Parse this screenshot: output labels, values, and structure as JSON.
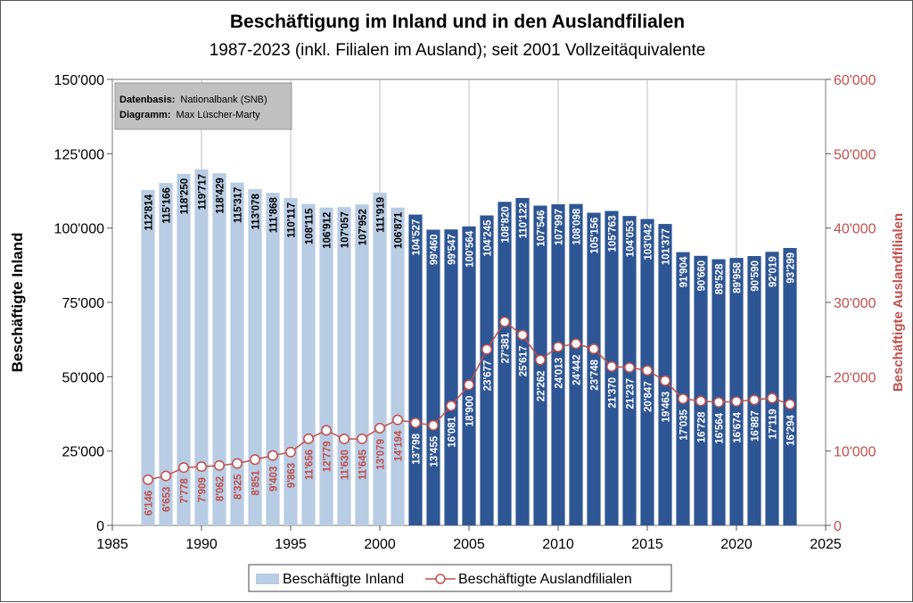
{
  "chart_data": {
    "type": "bar+line",
    "title": "Beschäftigung im Inland und in den Auslandfilialen",
    "subtitle": "1987-2023 (inkl. Filialen im Ausland); seit 2001 Vollzeitäquivalente",
    "ylabel_left": "Beschäftigte Inland",
    "ylabel_right": "Beschäftigte Auslandfilialen",
    "xlim": [
      1985,
      2025
    ],
    "x_ticks": [
      "1985",
      "1990",
      "1995",
      "2000",
      "2005",
      "2010",
      "2015",
      "2020",
      "2025"
    ],
    "ylim_left": [
      0,
      150000
    ],
    "y_ticks_left": [
      "0",
      "25'000",
      "50'000",
      "75'000",
      "100'000",
      "125'000",
      "150'000"
    ],
    "ylim_right": [
      0,
      60000
    ],
    "y_ticks_right": [
      "0",
      "10'000",
      "20'000",
      "30'000",
      "40'000",
      "50'000",
      "60'000"
    ],
    "grid": "vertical",
    "legend_placement": "bottom",
    "source_box": {
      "line1_label": "Datenbasis:",
      "line1_value": "Nationalbank (SNB)",
      "line2_label": "Diagramm:",
      "line2_value": "Max Lüscher-Marty"
    },
    "colors": {
      "bar_light": "#b8cce4",
      "bar_dark": "#2e5694",
      "line": "#c0504d",
      "axis_right": "#c0504d"
    },
    "x": [
      1987,
      1988,
      1989,
      1990,
      1991,
      1992,
      1993,
      1994,
      1995,
      1996,
      1997,
      1998,
      1999,
      2000,
      2001,
      2002,
      2003,
      2004,
      2005,
      2006,
      2007,
      2008,
      2009,
      2010,
      2011,
      2012,
      2013,
      2014,
      2015,
      2016,
      2017,
      2018,
      2019,
      2020,
      2021,
      2022,
      2023
    ],
    "series": [
      {
        "name": "Beschäftigte Inland",
        "values": [
          112814,
          115166,
          118250,
          119717,
          118429,
          115317,
          113078,
          111868,
          110117,
          108115,
          106912,
          107057,
          107952,
          111919,
          106871,
          104527,
          99460,
          99547,
          100564,
          104245,
          108820,
          110122,
          107546,
          107997,
          108098,
          105156,
          105763,
          104053,
          103042,
          101377,
          91904,
          90660,
          89528,
          89958,
          90590,
          92019,
          93299
        ],
        "labels": [
          "112'814",
          "115'166",
          "118'250",
          "119'717",
          "118'429",
          "115'317",
          "113'078",
          "111'868",
          "110'117",
          "108'115",
          "106'912",
          "107'057",
          "107'952",
          "111'919",
          "106'871",
          "104'527",
          "99'460",
          "99'547",
          "100'564",
          "104'245",
          "108'820",
          "110'122",
          "107'546",
          "107'997",
          "108'098",
          "105'156",
          "105'763",
          "104'053",
          "103'042",
          "101'377",
          "91'904",
          "90'660",
          "89'528",
          "89'958",
          "90'590",
          "92'019",
          "93'299"
        ]
      },
      {
        "name": "Beschäftigte Auslandfilialen",
        "values": [
          6146,
          6653,
          7778,
          7909,
          8062,
          8325,
          8851,
          9403,
          9863,
          11656,
          12779,
          11630,
          11645,
          13079,
          14194,
          13798,
          13455,
          16081,
          18900,
          23677,
          27381,
          25617,
          22262,
          24013,
          24442,
          23748,
          21370,
          21237,
          20847,
          19463,
          17035,
          16728,
          16564,
          16674,
          16887,
          17119,
          16294
        ],
        "labels": [
          "6'146",
          "6'653",
          "7'778",
          "7'909",
          "8'062",
          "8'325",
          "8'851",
          "9'403",
          "9'863",
          "11'656",
          "12'779",
          "11'630",
          "11'645",
          "13'079",
          "14'194",
          "13'798",
          "13'455",
          "16'081",
          "18'900",
          "23'677",
          "27'381",
          "25'617",
          "22'262",
          "24'013",
          "24'442",
          "23'748",
          "21'370",
          "21'237",
          "20'847",
          "19'463",
          "17'035",
          "16'728",
          "16'564",
          "16'674",
          "16'887",
          "17'119",
          "16'294"
        ]
      }
    ]
  }
}
